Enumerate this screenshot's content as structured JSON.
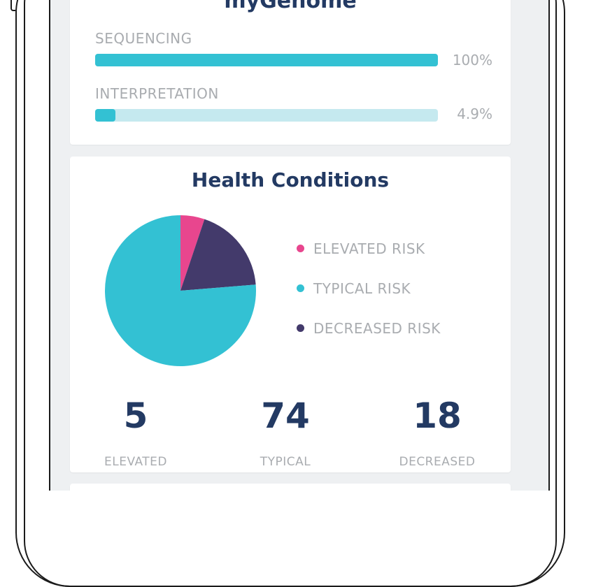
{
  "genome": {
    "title": "myGenome",
    "progress": [
      {
        "label": "SEQUENCING",
        "value_text": "100%",
        "fraction": 1.0
      },
      {
        "label": "INTERPRETATION",
        "value_text": "4.9%",
        "fraction": 0.049
      }
    ]
  },
  "health": {
    "title": "Health Conditions",
    "legend": [
      {
        "label": "ELEVATED RISK",
        "color": "#e8468e"
      },
      {
        "label": "TYPICAL RISK",
        "color": "#33c1d3"
      },
      {
        "label": "DECREASED RISK",
        "color": "#433a6b"
      }
    ],
    "stats": [
      {
        "number": "5",
        "label": "ELEVATED",
        "value": 5,
        "color": "#e8468e"
      },
      {
        "number": "74",
        "label": "TYPICAL",
        "value": 74,
        "color": "#33c1d3"
      },
      {
        "number": "18",
        "label": "DECREASED",
        "value": 18,
        "color": "#433a6b"
      }
    ]
  },
  "colors": {
    "accent_teal": "#33c1d3",
    "track_light": "#c5e9ef",
    "title_navy": "#233a63",
    "label_gray": "#a9acb0"
  }
}
